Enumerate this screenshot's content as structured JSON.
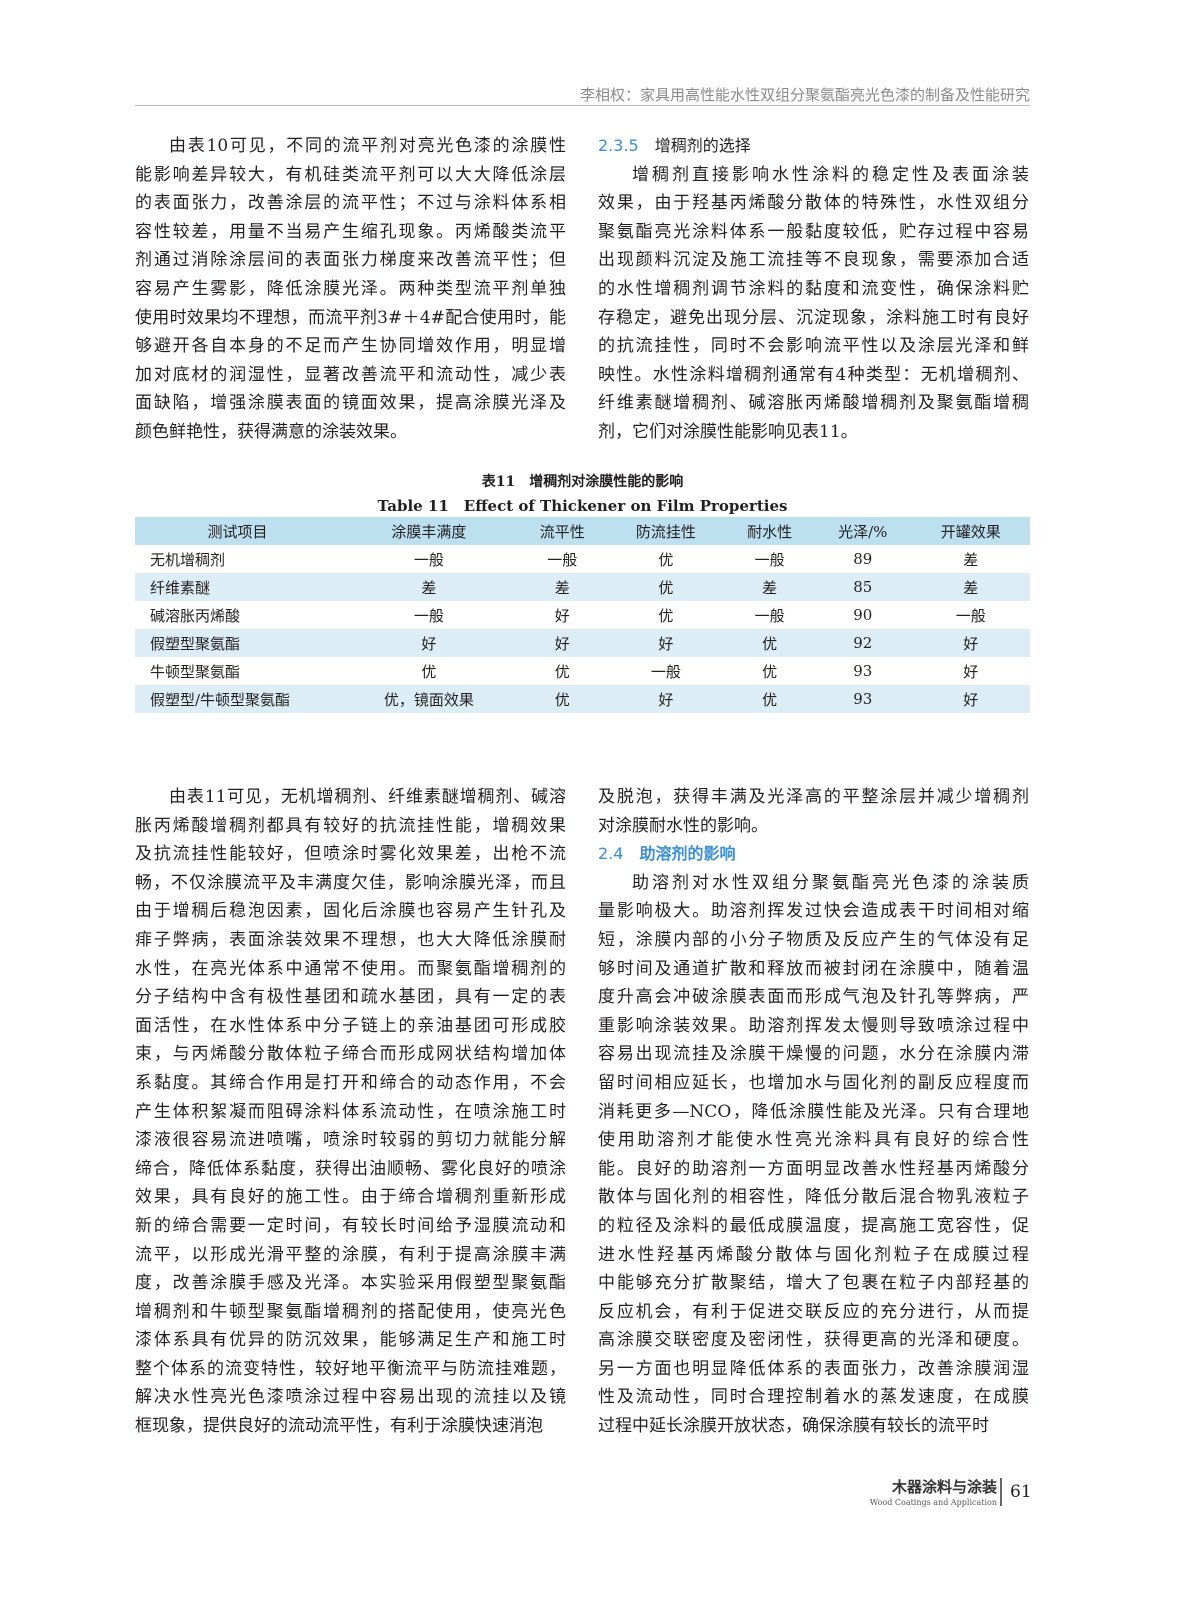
{
  "header": {
    "running_title": "李相权：家具用高性能水性双组分聚氨酯亮光色漆的制备及性能研究"
  },
  "columns_top": [
    [
      {
        "lines": [
          "由表10可见，不同的流平剂对亮光色漆的涂膜性",
          "能影响差异较大，有机硅类流平剂可以大大降低涂层",
          "的表面张力，改善涂层的流平性；不过与涂料体系相",
          "容性较差，用量不当易产生缩孔现象。丙烯酸类流平",
          "剂通过消除涂层间的表面张力梯度来改善流平性；但",
          "容易产生雾影，降低涂膜光泽。两种类型流平剂单独",
          "使用时效果均不理想，而流平剂3#＋4#配合使用时，能",
          "够避开各自本身的不足而产生协同增效作用，明显增",
          "加对底材的润湿性，显著改善流平和流动性，减少表",
          "面缺陷，增强涂膜表面的镜面效果，提高涂膜光泽及",
          "颜色鲜艳性，获得满意的涂装效果。"
        ]
      }
    ],
    [
      {
        "heading": {
          "number": "2.3.5",
          "title": "增稠剂的选择"
        }
      },
      {
        "lines": [
          "增稠剂直接影响水性涂料的稳定性及表面涂装",
          "效果，由于羟基丙烯酸分散体的特殊性，水性双组分",
          "聚氨酯亮光涂料体系一般黏度较低，贮存过程中容易",
          "出现颜料沉淀及施工流挂等不良现象，需要添加合适",
          "的水性增稠剂调节涂料的黏度和流变性，确保涂料贮",
          "存稳定，避免出现分层、沉淀现象，涂料施工时有良好",
          "的抗流挂性，同时不会影响流平性以及涂层光泽和鲜",
          "映性。水性涂料增稠剂通常有4种类型：无机增稠剂、",
          "纤维素醚增稠剂、碱溶胀丙烯酸增稠剂及聚氨酯增稠",
          "剂，它们对涂膜性能影响见表11。"
        ]
      }
    ]
  ],
  "table": {
    "caption_cn": "表11　增稠剂对涂膜性能的影响",
    "caption_en": "Table 11　Effect of Thickener on Film Properties",
    "header": [
      "测试项目",
      "涂膜丰满度",
      "流平性",
      "防流挂性",
      "耐水性",
      "光泽/%",
      "开罐效果"
    ],
    "rows": [
      [
        "无机增稠剂",
        "一般",
        "一般",
        "优",
        "一般",
        89,
        "差"
      ],
      [
        "纤维素醚",
        "差",
        "差",
        "优",
        "差",
        85,
        "差"
      ],
      [
        "碱溶胀丙烯酸",
        "一般",
        "好",
        "优",
        "一般",
        90,
        "一般"
      ],
      [
        "假塑型聚氨酯",
        "好",
        "好",
        "好",
        "优",
        92,
        "好"
      ],
      [
        "牛顿型聚氨酯",
        "优",
        "优",
        "一般",
        "优",
        93,
        "好"
      ],
      [
        "假塑型/牛顿型聚氨酯",
        "优，镜面效果",
        "优",
        "好",
        "优",
        93,
        "好"
      ]
    ]
  },
  "columns_bottom": [
    [
      {
        "lines": [
          "由表11可见，无机增稠剂、纤维素醚增稠剂、碱溶",
          "胀丙烯酸增稠剂都具有较好的抗流挂性能，增稠效果",
          "及抗流挂性能较好，但喷涂时雾化效果差，出枪不流",
          "畅，不仅涂膜流平及丰满度欠佳，影响涂膜光泽，而且",
          "由于增稠后稳泡因素，固化后涂膜也容易产生针孔及",
          "痱子弊病，表面涂装效果不理想，也大大降低涂膜耐",
          "水性，在亮光体系中通常不使用。而聚氨酯增稠剂的",
          "分子结构中含有极性基团和疏水基团，具有一定的表",
          "面活性，在水性体系中分子链上的亲油基团可形成胶",
          "束，与丙烯酸分散体粒子缔合而形成网状结构增加体",
          "系黏度。其缔合作用是打开和缔合的动态作用，不会",
          "产生体积絮凝而阻碍涂料体系流动性，在喷涂施工时",
          "漆液很容易流进喷嘴，喷涂时较弱的剪切力就能分解",
          "缔合，降低体系黏度，获得出油顺畅、雾化良好的喷涂",
          "效果，具有良好的施工性。由于缔合增稠剂重新形成",
          "新的缔合需要一定时间，有较长时间给予湿膜流动和",
          "流平，以形成光滑平整的涂膜，有利于提高涂膜丰满",
          "度，改善涂膜手感及光泽。本实验采用假塑型聚氨酯",
          "增稠剂和牛顿型聚氨酯增稠剂的搭配使用，使亮光色",
          "漆体系具有优异的防沉效果，能够满足生产和施工时",
          "整个体系的流变特性，较好地平衡流平与防流挂难题，",
          "解决水性亮光色漆喷涂过程中容易出现的流挂以及镜",
          "框现象，提供良好的流动流平性，有利于涂膜快速消泡"
        ]
      }
    ],
    [
      {
        "lines": [
          "及脱泡，获得丰满及光泽高的平整涂层并减少增稠剂",
          "对涂膜耐水性的影响。"
        ]
      },
      {
        "heading": {
          "number": "2.4",
          "title": "助溶剂的影响"
        }
      },
      {
        "lines": [
          "助溶剂对水性双组分聚氨酯亮光色漆的涂装质",
          "量影响极大。助溶剂挥发过快会造成表干时间相对缩",
          "短，涂膜内部的小分子物质及反应产生的气体没有足",
          "够时间及通道扩散和释放而被封闭在涂膜中，随着温",
          "度升高会冲破涂膜表面而形成气泡及针孔等弊病，严",
          "重影响涂装效果。助溶剂挥发太慢则导致喷涂过程中",
          "容易出现流挂及涂膜干燥慢的问题，水分在涂膜内滞",
          "留时间相应延长，也增加水与固化剂的副反应程度而",
          "消耗更多—NCO，降低涂膜性能及光泽。只有合理地",
          "使用助溶剂才能使水性亮光涂料具有良好的综合性",
          "能。良好的助溶剂一方面明显改善水性羟基丙烯酸分",
          "散体与固化剂的相容性，降低分散后混合物乳液粒子",
          "的粒径及涂料的最低成膜温度，提高施工宽容性，促",
          "进水性羟基丙烯酸分散体与固化剂粒子在成膜过程",
          "中能够充分扩散聚结，增大了包裹在粒子内部羟基的",
          "反应机会，有利于促进交联反应的充分进行，从而提",
          "高涂膜交联密度及密闭性，获得更高的光泽和硬度。",
          "另一方面也明显降低体系的表面张力，改善涂膜润湿",
          "性及流动性，同时合理控制着水的蒸发速度，在成膜",
          "过程中延长涂膜开放状态，确保涂膜有较长的流平时"
        ]
      }
    ]
  ],
  "footer": {
    "journal_cn": "木器涂料与涂装",
    "journal_en": "Wood Coatings and Application",
    "page": 61
  }
}
